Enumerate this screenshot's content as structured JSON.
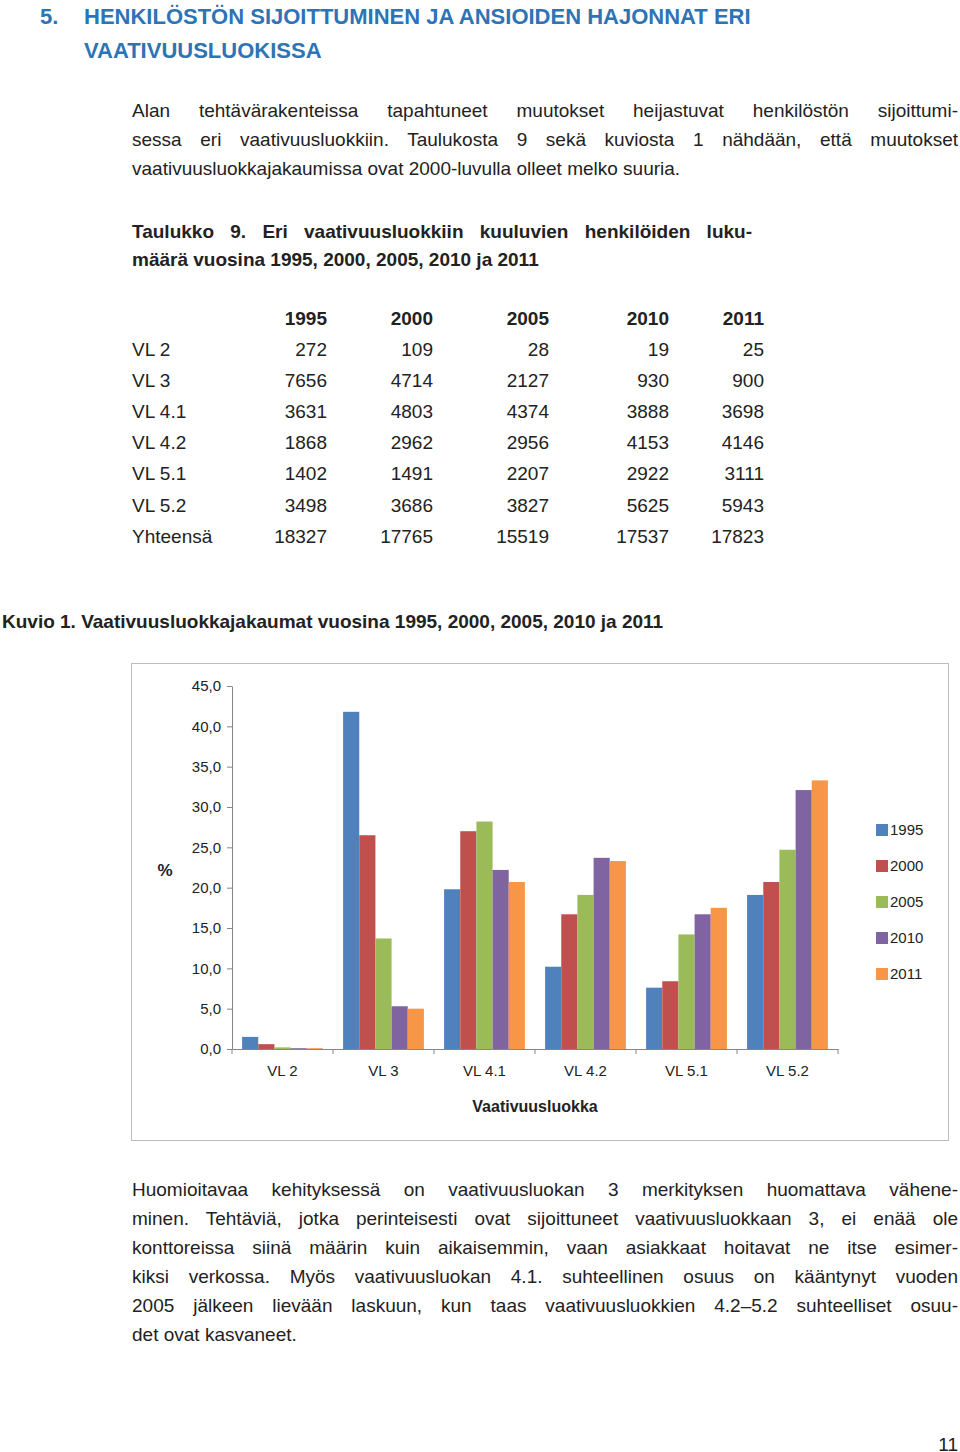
{
  "header": {
    "number": "5.",
    "lines": [
      "HENKILÖSTÖN SIJOITTUMINEN JA ANSIOIDEN HAJONNAT ERI",
      "VAATIVUUSLUOKISSA"
    ]
  },
  "intro": {
    "lines": [
      "Alan tehtävärakenteissa tapahtuneet muutokset heijastuvat henkilöstön sijoittumi-",
      "sessa eri vaativuusluokkiin. Taulukosta 9 sekä kuviosta 1 nähdään, että muutokset",
      "vaativuusluokkajakaumissa ovat 2000-luvulla olleet melko suuria."
    ]
  },
  "table": {
    "caption": [
      "Taulukko 9. Eri vaativuusluokkiin kuuluvien henkilöiden luku-",
      "määrä vuosina 1995, 2000, 2005, 2010 ja 2011"
    ],
    "columns": [
      "1995",
      "2000",
      "2005",
      "2010",
      "2011"
    ],
    "rows": [
      [
        "VL 2",
        272,
        109,
        28,
        19,
        25
      ],
      [
        "VL 3",
        7656,
        4714,
        2127,
        930,
        900
      ],
      [
        "VL 4.1",
        3631,
        4803,
        4374,
        3888,
        3698
      ],
      [
        "VL 4.2",
        1868,
        2962,
        2956,
        4153,
        4146
      ],
      [
        "VL 5.1",
        1402,
        1491,
        2207,
        2922,
        3111
      ],
      [
        "VL 5.2",
        3498,
        3686,
        3827,
        5625,
        5943
      ],
      [
        "Yhteensä",
        18327,
        17765,
        15519,
        17537,
        17823
      ]
    ]
  },
  "chart_data": {
    "type": "bar",
    "title": "Kuvio 1. Vaativuusluokkajakaumat vuosina 1995, 2000, 2005, 2010 ja 2011",
    "x_label": "Vaativuusluokka",
    "y_label": "%",
    "categories": [
      "VL 2",
      "VL 3",
      "VL 4.1",
      "VL 4.2",
      "VL 5.1",
      "VL 5.2"
    ],
    "series": [
      {
        "name": "1995",
        "color": "#4f81bd",
        "values": [
          1.5,
          41.8,
          19.8,
          10.2,
          7.6,
          19.1
        ]
      },
      {
        "name": "2000",
        "color": "#c0504d",
        "values": [
          0.6,
          26.5,
          27.0,
          16.7,
          8.4,
          20.7
        ]
      },
      {
        "name": "2005",
        "color": "#9bbb59",
        "values": [
          0.2,
          13.7,
          28.2,
          19.1,
          14.2,
          24.7
        ]
      },
      {
        "name": "2010",
        "color": "#8064a2",
        "values": [
          0.1,
          5.3,
          22.2,
          23.7,
          16.7,
          32.1
        ]
      },
      {
        "name": "2011",
        "color": "#f79646",
        "values": [
          0.1,
          5.0,
          20.7,
          23.3,
          17.5,
          33.3
        ]
      }
    ],
    "ylim": [
      0,
      45
    ],
    "yticks": [
      {
        "value": 0,
        "label": "0,0"
      },
      {
        "value": 5,
        "label": "5,0"
      },
      {
        "value": 10,
        "label": "10,0"
      },
      {
        "value": 15,
        "label": "15,0"
      },
      {
        "value": 20,
        "label": "20,0"
      },
      {
        "value": 25,
        "label": "25,0"
      },
      {
        "value": 30,
        "label": "30,0"
      },
      {
        "value": 35,
        "label": "35,0"
      },
      {
        "value": 40,
        "label": "40,0"
      },
      {
        "value": 45,
        "label": "45,0"
      }
    ],
    "grid": false,
    "legend": "right"
  },
  "conclusion": {
    "lines": [
      "Huomioitavaa kehityksessä on vaativuusluokan 3 merkityksen huomattava vähene-",
      "minen. Tehtäviä, jotka perinteisesti ovat sijoittuneet vaativuusluokkaan 3, ei enää ole",
      "konttoreissa siinä määrin kuin aikaisemmin, vaan asiakkaat hoitavat ne itse esimer-",
      "kiksi verkossa. Myös vaativuusluokan 4.1. suhteellinen osuus on kääntynyt vuoden",
      "2005 jälkeen lievään laskuun, kun taas vaativuusluokkien 4.2–5.2 suhteelliset osuu-",
      "det ovat kasvaneet."
    ]
  },
  "page_number": "11"
}
